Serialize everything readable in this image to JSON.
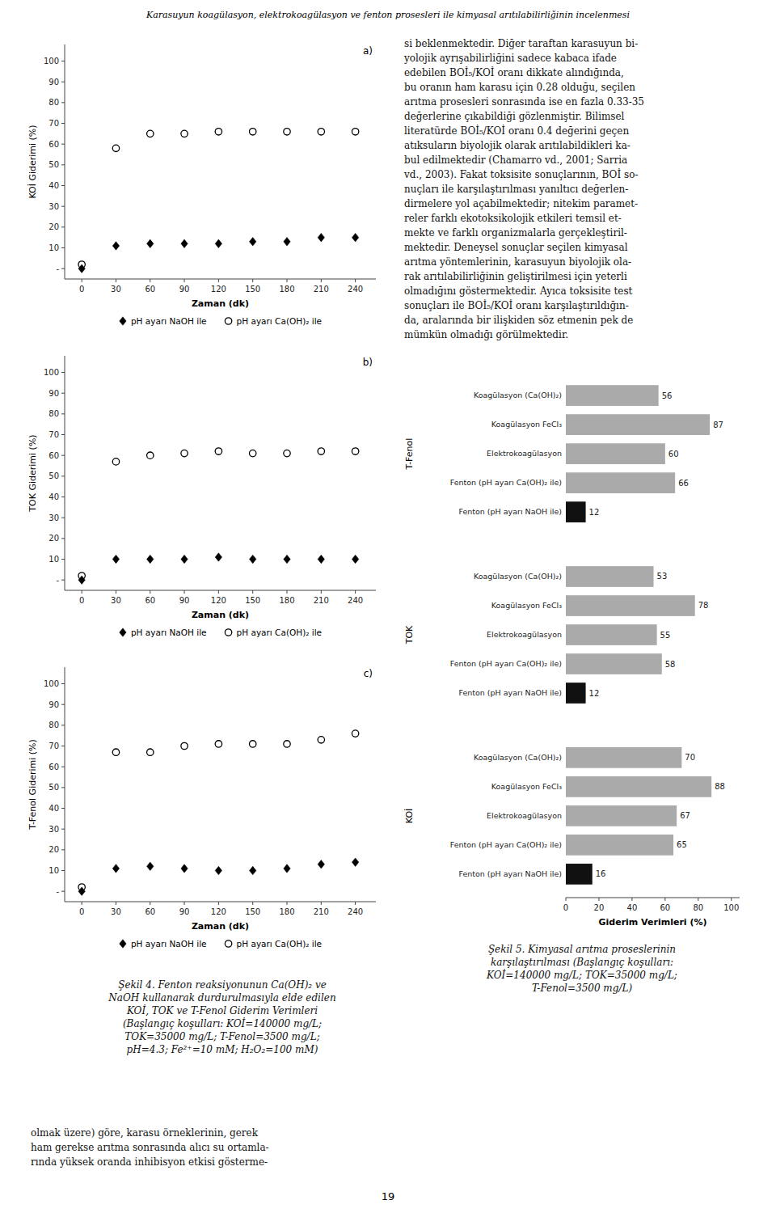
{
  "chart_data": [
    {
      "type": "scatter",
      "title": "a)",
      "x": [
        0,
        30,
        60,
        90,
        120,
        150,
        180,
        210,
        240
      ],
      "series": [
        {
          "name": "pH ayarı NaOH ile",
          "color": "#000000",
          "marker": "diamond",
          "values": [
            0,
            11,
            12,
            12,
            12,
            13,
            13,
            15,
            15
          ]
        },
        {
          "name": "pH ayarı Ca(OH)₂ ile",
          "color": "#000000",
          "marker": "open-circle",
          "values": [
            2,
            58,
            65,
            65,
            66,
            66,
            66,
            66,
            66
          ]
        }
      ],
      "xlabel": "Zaman (dk)",
      "ylabel": "KOİ Giderimi (%)",
      "xlim": [
        -15,
        258
      ],
      "xticks": [
        0,
        30,
        60,
        90,
        120,
        150,
        180,
        210,
        240
      ],
      "ylim": [
        -5,
        108
      ],
      "yticks": [
        {
          "value": 0,
          "label": "-"
        },
        10,
        20,
        30,
        40,
        50,
        60,
        70,
        80,
        90,
        100
      ],
      "grid": false,
      "legend": "bottom"
    },
    {
      "type": "scatter",
      "title": "b)",
      "x": [
        0,
        30,
        60,
        90,
        120,
        150,
        180,
        210,
        240
      ],
      "series": [
        {
          "name": "pH ayarı NaOH ile",
          "color": "#000000",
          "marker": "diamond",
          "values": [
            0,
            10,
            10,
            10,
            11,
            10,
            10,
            10,
            10
          ]
        },
        {
          "name": "pH ayarı Ca(OH)₂ ile",
          "color": "#000000",
          "marker": "open-circle",
          "values": [
            2,
            57,
            60,
            61,
            62,
            61,
            61,
            62,
            62
          ]
        }
      ],
      "xlabel": "Zaman (dk)",
      "ylabel": "TOK Giderimi (%)",
      "xlim": [
        -15,
        258
      ],
      "xticks": [
        0,
        30,
        60,
        90,
        120,
        150,
        180,
        210,
        240
      ],
      "ylim": [
        -5,
        108
      ],
      "yticks": [
        {
          "value": 0,
          "label": "-"
        },
        10,
        20,
        30,
        40,
        50,
        60,
        70,
        80,
        90,
        100
      ],
      "grid": false,
      "legend": "bottom"
    },
    {
      "type": "scatter",
      "title": "c)",
      "x": [
        0,
        30,
        60,
        90,
        120,
        150,
        180,
        210,
        240
      ],
      "series": [
        {
          "name": "pH ayarı NaOH ile",
          "color": "#000000",
          "marker": "diamond",
          "values": [
            0,
            11,
            12,
            11,
            10,
            10,
            11,
            13,
            14
          ]
        },
        {
          "name": "pH ayarı Ca(OH)₂ ile",
          "color": "#000000",
          "marker": "open-circle",
          "values": [
            2,
            67,
            67,
            70,
            71,
            71,
            71,
            73,
            76
          ]
        }
      ],
      "xlabel": "Zaman (dk)",
      "ylabel": "T-Fenol Giderimi (%)",
      "xlim": [
        -15,
        258
      ],
      "xticks": [
        0,
        30,
        60,
        90,
        120,
        150,
        180,
        210,
        240
      ],
      "ylim": [
        -5,
        108
      ],
      "yticks": [
        {
          "value": 0,
          "label": "-"
        },
        10,
        20,
        30,
        40,
        50,
        60,
        70,
        80,
        90,
        100
      ],
      "grid": false,
      "legend": "bottom"
    },
    {
      "type": "bar",
      "orientation": "horizontal",
      "categories": [
        "T-Fenol",
        "TOK",
        "KOİ"
      ],
      "series": [
        {
          "name": "Fenton (pH ayarı NaOH ile)",
          "color": "#111111",
          "values": [
            12,
            12,
            16
          ]
        },
        {
          "name": "Fenton (pH ayarı Ca(OH)₂ ile)",
          "color": "#aaaaaa",
          "values": [
            66,
            58,
            65
          ]
        },
        {
          "name": "Elektrokoagülasyon",
          "color": "#aaaaaa",
          "values": [
            60,
            55,
            67
          ]
        },
        {
          "name": "Koagülasyon FeCl₃",
          "color": "#aaaaaa",
          "values": [
            87,
            78,
            88
          ]
        },
        {
          "name": "Koagülasyon (Ca(OH)₂)",
          "color": "#aaaaaa",
          "values": [
            56,
            53,
            70
          ]
        }
      ],
      "xlabel": "Giderim Verimleri (%)",
      "xlim": [
        0,
        105
      ],
      "xticks": [
        0,
        20,
        40,
        60,
        80,
        100
      ],
      "data_labels": true,
      "grid": false
    }
  ],
  "page": {
    "header": "Karasuyun koagülasyon, elektrokoagülasyon ve fenton prosesleri ile kimyasal arıtılabilirliğinin incelenmesi",
    "right_text": [
      "si beklenmektedir. Diğer taraftan karasuyun bi-",
      "yolojik ayrışabilirliğini sadece kabaca ifade",
      "edebilen BOİ₅/KOİ oranı dikkate alındığında,",
      "bu oranın ham karasu için 0.28 olduğu, seçilen",
      "arıtma prosesleri sonrasında ise en fazla 0.33-35",
      "değerlerine çıkabildiği gözlenmiştir. Bilimsel",
      "literatürde BOİ₅/KOİ oranı 0.4 değerini geçen",
      "atıksuların biyolojik olarak arıtılabildikleri ka-",
      "bul edilmektedir (Chamarro vd., 2001; Sarria",
      "vd., 2003). Fakat toksisite sonuçlarının, BOİ so-",
      "nuçları ile karşılaştırılması yanıltıcı değerlen-",
      "dirmelere yol açabilmektedir; nitekim paramet-",
      "reler farklı ekotoksikolojik etkileri temsil et-",
      "mekte ve farklı organizmalarla gerçekleştiril-",
      "mektedir. Deneysel sonuçlar seçilen kimyasal",
      "arıtma yöntemlerinin, karasuyun biyolojik ola-",
      "rak arıtılabilirliğinin geliştirilmesi için yeterli",
      "olmadığını göstermektedir. Ayıca toksisite test",
      "sonuçları ile BOİ₅/KOİ oranı karşılaştırıldığın-",
      "da, aralarında bir ilişkiden söz etmenin pek de",
      "mümkün olmadığı görülmektedir."
    ],
    "captions": [
      [
        "Şekil 4. Fenton reaksiyonunun Ca(OH)₂ ve",
        "NaOH kullanarak durdurulmasıyla elde edilen",
        "KOİ, TOK ve T-Fenol Giderim Verimleri",
        "(Başlangıç koşulları: KOİ=140000 mg/L;",
        "TOK=35000 mg/L; T-Fenol=3500 mg/L;",
        "pH=4.3; Fe²⁺=10 mM; H₂O₂=100 mM)"
      ],
      [
        "Şekil 5. Kimyasal arıtma proseslerinin",
        "karşılaştırılması (Başlangıç koşulları:",
        "KOİ=140000 mg/L; TOK=35000 mg/L;",
        "T-Fenol=3500 mg/L)"
      ]
    ],
    "bottom_text": [
      "olmak üzere) göre, karasu örneklerinin, gerek",
      "ham gerekse arıtma sonrasında alıcı su ortamla-",
      "rında yüksek oranda inhibisyon etkisi gösterme-"
    ],
    "page_number": "19"
  }
}
